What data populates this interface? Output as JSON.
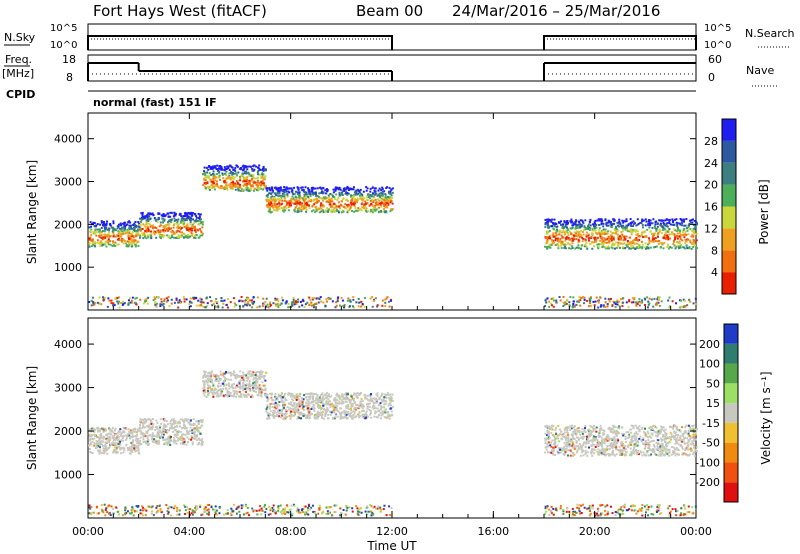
{
  "header": {
    "title": "Fort Hays West (fitACF)",
    "beam": "Beam 00",
    "date_range": "24/Mar/2016 – 25/Mar/2016"
  },
  "chart_data": [
    {
      "type": "line",
      "panel": "noise",
      "left_label": "N.Sky",
      "right_label": "N.Search",
      "left_ticks": [
        "10^5",
        "10^0"
      ],
      "right_ticks": [
        "10^5",
        "10^0"
      ],
      "segments": [
        [
          0,
          12
        ],
        [
          18,
          24
        ]
      ]
    },
    {
      "type": "line",
      "panel": "frequency",
      "left_label_top": "Freq.",
      "left_label_bottom": "[MHz]",
      "left_ticks": [
        "18",
        "8"
      ],
      "right_label": "Nave",
      "right_ticks": [
        "60",
        "0"
      ],
      "cpid_label": "CPID",
      "mode_label": "normal (fast) 151 IF",
      "freq_steps": [
        {
          "t0": 0,
          "t1": 2,
          "level": "high"
        },
        {
          "t0": 2,
          "t1": 12,
          "level": "low"
        },
        {
          "t0": 18,
          "t1": 24,
          "level": "high"
        }
      ]
    },
    {
      "type": "heatmap",
      "panel": "power",
      "ylabel": "Slant Range [km]",
      "yticks": [
        1000,
        2000,
        3000,
        4000
      ],
      "ylim": [
        0,
        4600
      ],
      "colorbar_label": "Power [dB]",
      "colorbar_ticks": [
        4,
        8,
        12,
        16,
        20,
        24,
        28
      ],
      "colorbar_colors": [
        "#1e1ef0",
        "#2b5aa0",
        "#3c7f80",
        "#4caf5a",
        "#c9d63c",
        "#f0a020",
        "#f07010",
        "#e82000"
      ],
      "scatter_bands": [
        {
          "t0": 0,
          "t1": 2,
          "r_center": 1800,
          "r_spread": 300
        },
        {
          "t0": 2,
          "t1": 4.5,
          "r_center": 2000,
          "r_spread": 300
        },
        {
          "t0": 4.5,
          "t1": 7,
          "r_center": 3100,
          "r_spread": 300
        },
        {
          "t0": 7,
          "t1": 12,
          "r_center": 2600,
          "r_spread": 300
        },
        {
          "t0": 18,
          "t1": 24,
          "r_center": 1800,
          "r_spread": 350
        }
      ]
    },
    {
      "type": "heatmap",
      "panel": "velocity",
      "ylabel": "Slant Range [km]",
      "yticks": [
        1000,
        2000,
        3000,
        4000
      ],
      "ylim": [
        0,
        4600
      ],
      "colorbar_label": "Velocity [m s⁻¹]",
      "colorbar_ticks": [
        200,
        100,
        50,
        15,
        -15,
        -50,
        -100,
        -200
      ],
      "colorbar_colors": [
        "#1e3cc8",
        "#2f7d70",
        "#56a84a",
        "#9be065",
        "#c8c8c0",
        "#f0c030",
        "#f08a10",
        "#f05010",
        "#e01010"
      ],
      "xlabel": "Time UT",
      "xticks": [
        "00:00",
        "04:00",
        "08:00",
        "12:00",
        "16:00",
        "20:00",
        "00:00"
      ],
      "xlim": [
        0,
        24
      ]
    }
  ]
}
